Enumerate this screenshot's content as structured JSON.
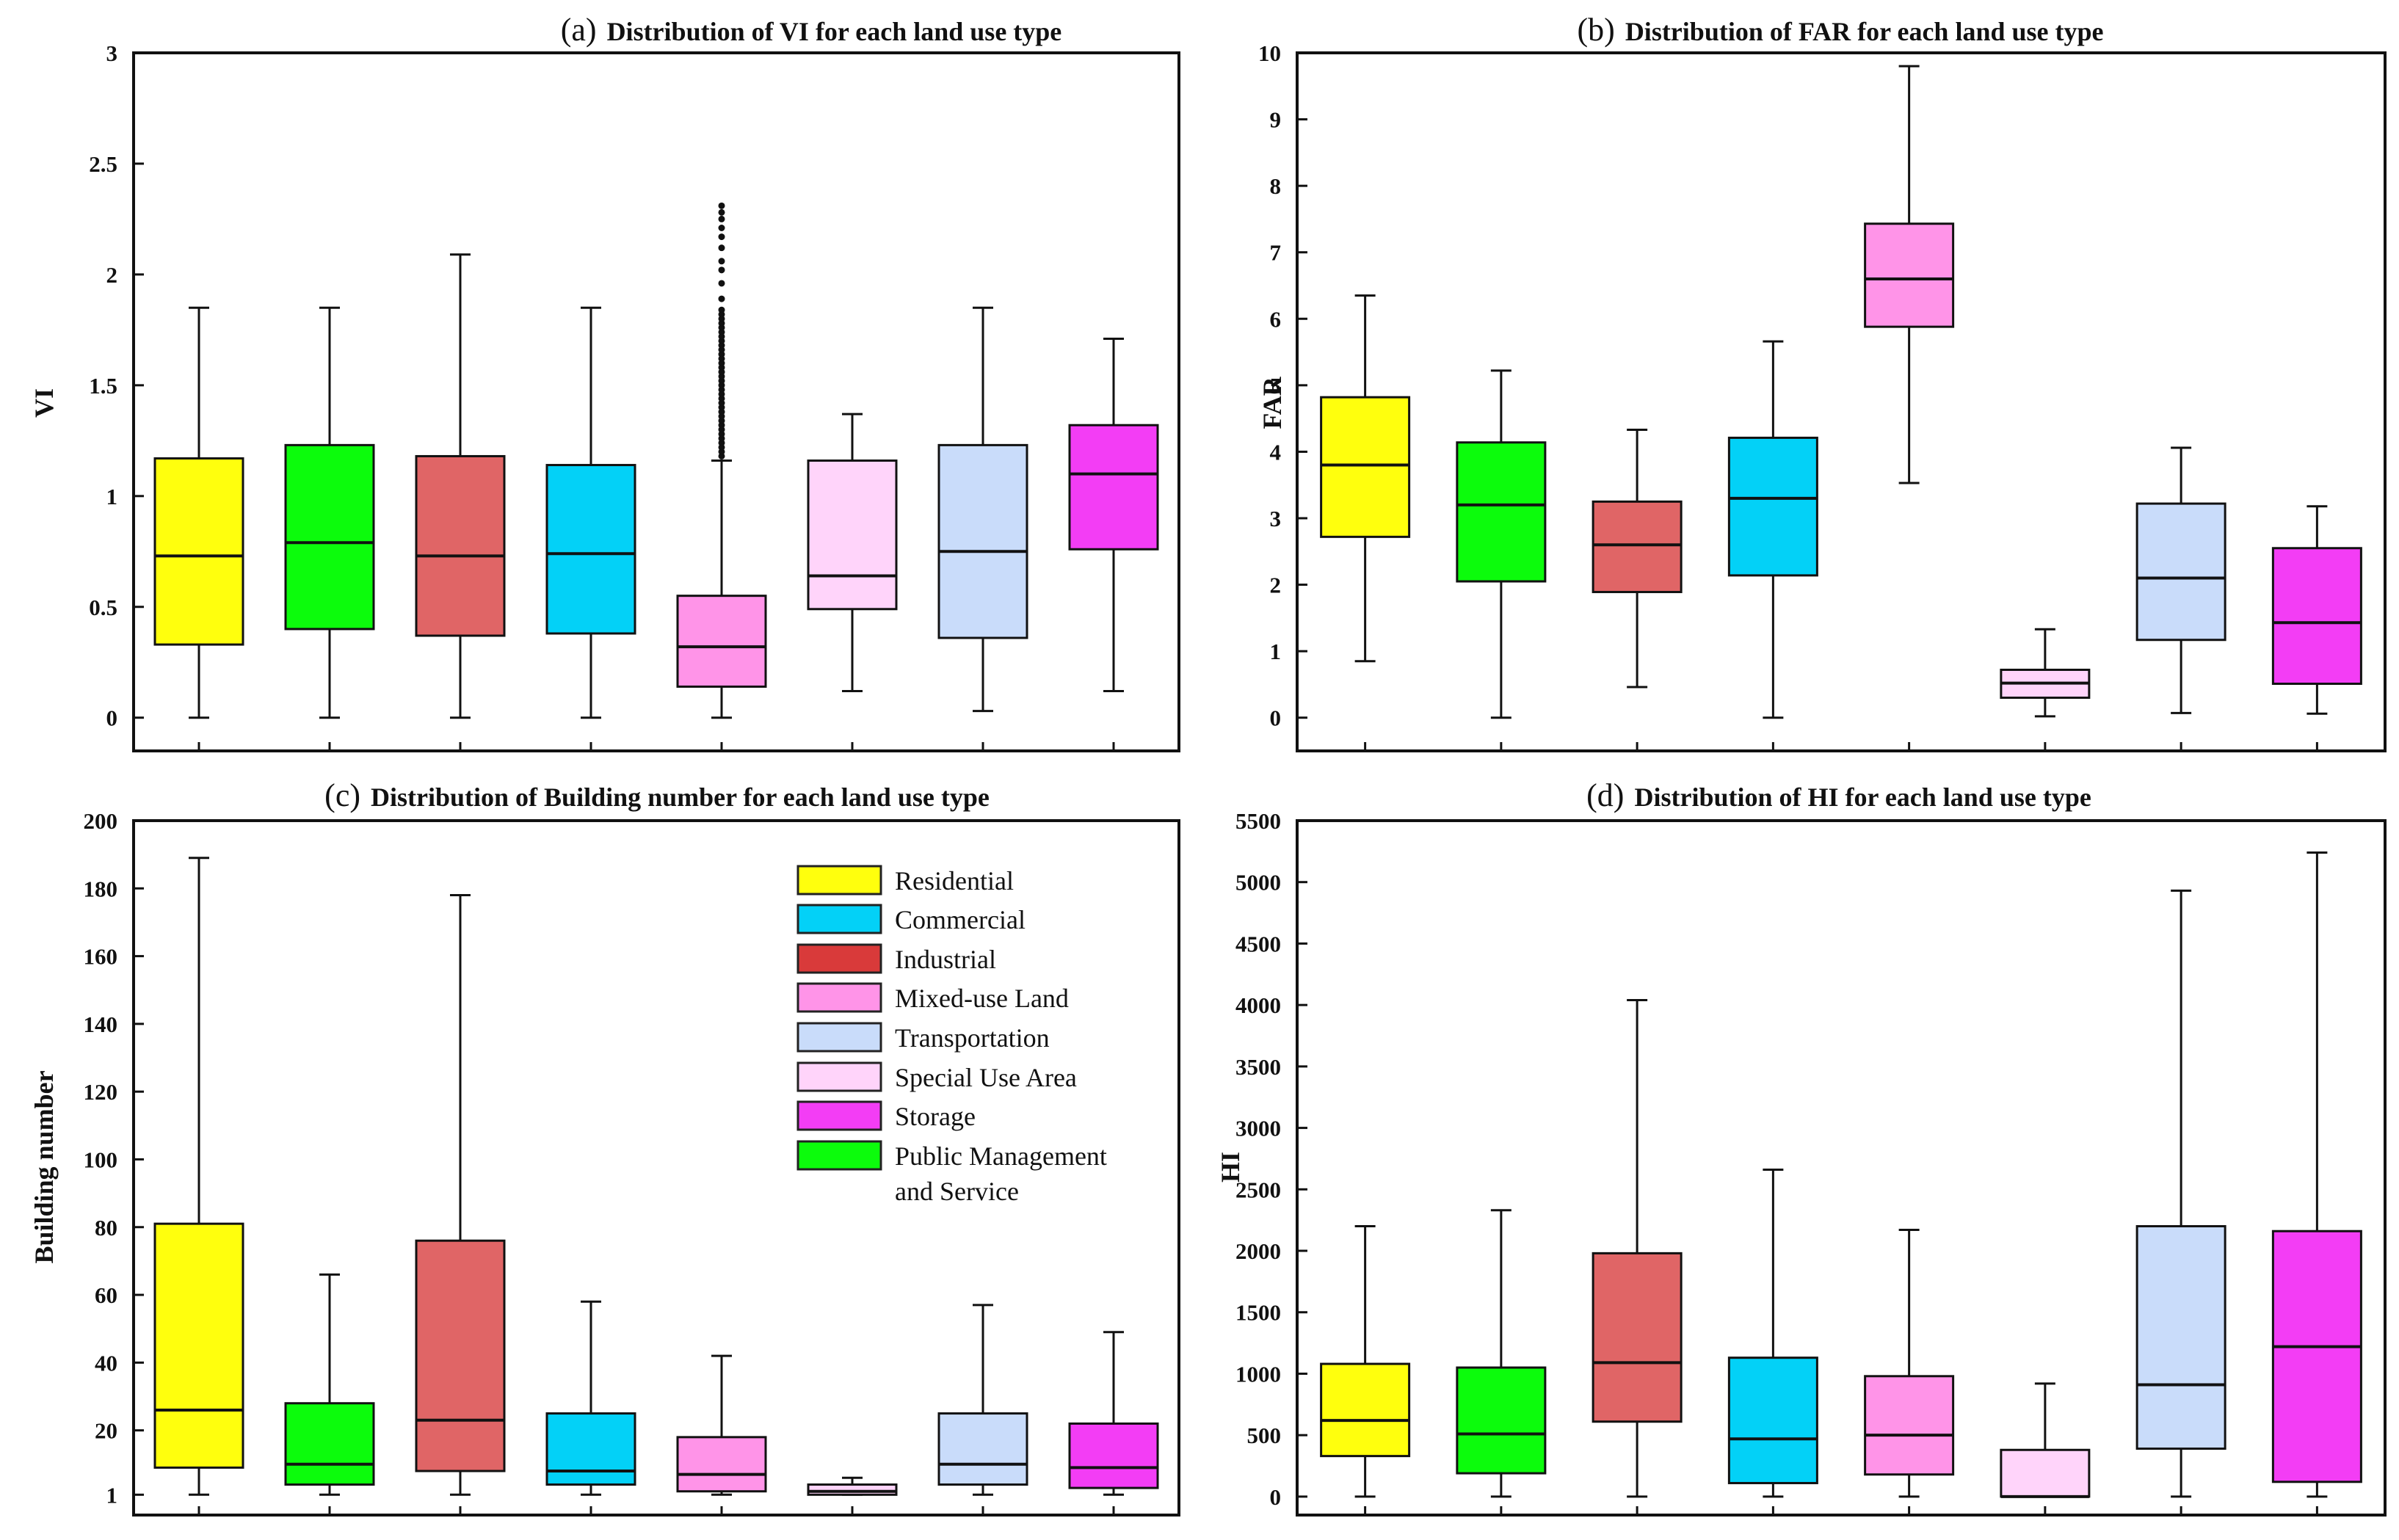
{
  "colors": {
    "yellow": "#ffff0d",
    "green": "#0cfc0c",
    "red": "#e06566",
    "cyan": "#03d1f7",
    "pink": "#ff94e8",
    "lightpink": "#ffd4fa",
    "lightblue": "#c9dcfa",
    "magenta": "#f33df5",
    "legend_red": "#d93a3a"
  },
  "legend": {
    "items": [
      {
        "label": "Residential",
        "color": "#ffff0d"
      },
      {
        "label": "Commercial",
        "color": "#03d1f7"
      },
      {
        "label": "Industrial",
        "color": "#d93a3a"
      },
      {
        "label": "Mixed-use Land",
        "color": "#ff94e8"
      },
      {
        "label": "Transportation",
        "color": "#c9dcfa"
      },
      {
        "label": "Special Use Area",
        "color": "#ffd4fa"
      },
      {
        "label": "Storage",
        "color": "#f33df5"
      },
      {
        "label": "Public Management",
        "color": "#0cfc0c"
      }
    ],
    "continuation": "and Service"
  },
  "chart_data": [
    {
      "type": "box",
      "panel": "(a)",
      "title": "Distribution of VI for each land use type",
      "ylabel": "VI",
      "ylim": [
        -0.15,
        3
      ],
      "yticks": [
        "0",
        "0.5",
        "1",
        "1.5",
        "2",
        "2.5",
        "3"
      ],
      "ytick_values": [
        0,
        0.5,
        1,
        1.5,
        2,
        2.5,
        3
      ],
      "boxes": [
        {
          "color": "#ffff0d",
          "min": 0,
          "q1": 0.33,
          "median": 0.73,
          "q3": 1.17,
          "max": 1.85
        },
        {
          "color": "#0cfc0c",
          "min": 0,
          "q1": 0.4,
          "median": 0.79,
          "q3": 1.23,
          "max": 1.85
        },
        {
          "color": "#e06566",
          "min": 0,
          "q1": 0.37,
          "median": 0.73,
          "q3": 1.18,
          "max": 2.09
        },
        {
          "color": "#03d1f7",
          "min": 0,
          "q1": 0.38,
          "median": 0.74,
          "q3": 1.14,
          "max": 1.85
        },
        {
          "color": "#ff94e8",
          "min": 0,
          "q1": 0.14,
          "median": 0.32,
          "q3": 0.55,
          "max": 1.16,
          "outliers": [
            1.18,
            1.2,
            1.22,
            1.24,
            1.26,
            1.28,
            1.3,
            1.32,
            1.34,
            1.36,
            1.38,
            1.4,
            1.42,
            1.44,
            1.46,
            1.48,
            1.5,
            1.52,
            1.54,
            1.56,
            1.58,
            1.6,
            1.62,
            1.64,
            1.66,
            1.68,
            1.7,
            1.72,
            1.74,
            1.76,
            1.78,
            1.8,
            1.82,
            1.84,
            1.89,
            1.96,
            2.02,
            2.06,
            2.12,
            2.17,
            2.21,
            2.25,
            2.28,
            2.31
          ]
        },
        {
          "color": "#ffd4fa",
          "min": 0.12,
          "q1": 0.49,
          "median": 0.64,
          "q3": 1.16,
          "max": 1.37
        },
        {
          "color": "#c9dcfa",
          "min": 0.03,
          "q1": 0.36,
          "median": 0.75,
          "q3": 1.23,
          "max": 1.85
        },
        {
          "color": "#f33df5",
          "min": 0.12,
          "q1": 0.76,
          "median": 1.1,
          "q3": 1.32,
          "max": 1.71
        }
      ]
    },
    {
      "type": "box",
      "panel": "(b)",
      "title": "Distribution of FAR for each land use type",
      "ylabel": "FAR",
      "ylim": [
        -0.5,
        10
      ],
      "yticks": [
        "0",
        "1",
        "2",
        "3",
        "4",
        "5",
        "6",
        "7",
        "8",
        "9",
        "10"
      ],
      "ytick_values": [
        0,
        1,
        2,
        3,
        4,
        5,
        6,
        7,
        8,
        9,
        10
      ],
      "boxes": [
        {
          "color": "#ffff0d",
          "min": 0.85,
          "q1": 2.72,
          "median": 3.8,
          "q3": 4.82,
          "max": 6.35
        },
        {
          "color": "#0cfc0c",
          "min": 0,
          "q1": 2.05,
          "median": 3.2,
          "q3": 4.14,
          "max": 5.22
        },
        {
          "color": "#e06566",
          "min": 0.46,
          "q1": 1.89,
          "median": 2.6,
          "q3": 3.25,
          "max": 4.33
        },
        {
          "color": "#03d1f7",
          "min": 0,
          "q1": 2.14,
          "median": 3.3,
          "q3": 4.21,
          "max": 5.66
        },
        {
          "color": "#ff94e8",
          "min": 3.53,
          "q1": 5.88,
          "median": 6.6,
          "q3": 7.43,
          "max": 9.8
        },
        {
          "color": "#ffd4fa",
          "min": 0.02,
          "q1": 0.3,
          "median": 0.52,
          "q3": 0.72,
          "max": 1.33
        },
        {
          "color": "#c9dcfa",
          "min": 0.07,
          "q1": 1.17,
          "median": 2.1,
          "q3": 3.22,
          "max": 4.06
        },
        {
          "color": "#f33df5",
          "min": 0.06,
          "q1": 0.51,
          "median": 1.43,
          "q3": 2.55,
          "max": 3.18
        }
      ]
    },
    {
      "type": "box",
      "panel": "(c)",
      "title": "Distribution of Building number for each land use type",
      "ylabel": "Building number",
      "ylim": [
        -5,
        200
      ],
      "yticks": [
        "1",
        "20",
        "40",
        "60",
        "80",
        "100",
        "120",
        "140",
        "160",
        "180",
        "200"
      ],
      "ytick_values": [
        1,
        20,
        40,
        60,
        80,
        100,
        120,
        140,
        160,
        180,
        200
      ],
      "boxes": [
        {
          "color": "#ffff0d",
          "min": 1,
          "q1": 9,
          "median": 26,
          "q3": 81,
          "max": 189
        },
        {
          "color": "#0cfc0c",
          "min": 1,
          "q1": 4,
          "median": 10,
          "q3": 28,
          "max": 66
        },
        {
          "color": "#e06566",
          "min": 1,
          "q1": 8,
          "median": 23,
          "q3": 76,
          "max": 178
        },
        {
          "color": "#03d1f7",
          "min": 1,
          "q1": 4,
          "median": 8,
          "q3": 25,
          "max": 58
        },
        {
          "color": "#ff94e8",
          "min": 1,
          "q1": 2,
          "median": 7,
          "q3": 18,
          "max": 42
        },
        {
          "color": "#ffd4fa",
          "min": 1,
          "q1": 1,
          "median": 2,
          "q3": 4,
          "max": 6
        },
        {
          "color": "#c9dcfa",
          "min": 1,
          "q1": 4,
          "median": 10,
          "q3": 25,
          "max": 57
        },
        {
          "color": "#f33df5",
          "min": 1,
          "q1": 3,
          "median": 9,
          "q3": 22,
          "max": 49
        }
      ]
    },
    {
      "type": "box",
      "panel": "(d)",
      "title": "Distribution of HI for each land use type",
      "ylabel": "HI",
      "ylim": [
        -150,
        5500
      ],
      "yticks": [
        "0",
        "500",
        "1000",
        "1500",
        "2000",
        "2500",
        "3000",
        "3500",
        "4000",
        "4500",
        "5000",
        "5500"
      ],
      "ytick_values": [
        0,
        500,
        1000,
        1500,
        2000,
        2500,
        3000,
        3500,
        4000,
        4500,
        5000,
        5500
      ],
      "boxes": [
        {
          "color": "#ffff0d",
          "min": 0,
          "q1": 330,
          "median": 620,
          "q3": 1080,
          "max": 2200
        },
        {
          "color": "#0cfc0c",
          "min": 0,
          "q1": 190,
          "median": 510,
          "q3": 1050,
          "max": 2330
        },
        {
          "color": "#e06566",
          "min": 0,
          "q1": 610,
          "median": 1090,
          "q3": 1980,
          "max": 4040
        },
        {
          "color": "#03d1f7",
          "min": 0,
          "q1": 110,
          "median": 470,
          "q3": 1130,
          "max": 2660
        },
        {
          "color": "#ff94e8",
          "min": 0,
          "q1": 180,
          "median": 500,
          "q3": 980,
          "max": 2170
        },
        {
          "color": "#ffd4fa",
          "min": 0,
          "q1": 0,
          "median": 0,
          "q3": 380,
          "max": 920
        },
        {
          "color": "#c9dcfa",
          "min": 0,
          "q1": 390,
          "median": 910,
          "q3": 2200,
          "max": 4930
        },
        {
          "color": "#f33df5",
          "min": 0,
          "q1": 120,
          "median": 1220,
          "q3": 2160,
          "max": 5240
        }
      ]
    }
  ]
}
